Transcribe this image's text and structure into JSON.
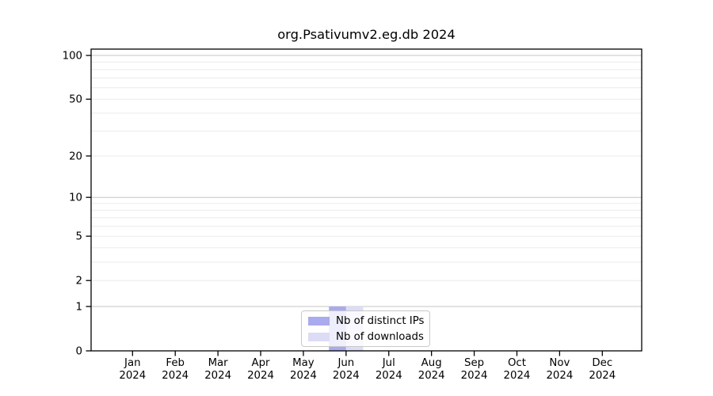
{
  "title": "org.Psativumv2.eg.db 2024",
  "colors": {
    "background": "#ffffff",
    "axis": "#000000",
    "grid_minor": "#ebebeb",
    "grid_major": "#c5c5c5",
    "legend_border": "#c9c9c9",
    "distinct_ips": "#aaaaee",
    "downloads": "#dcdcf7"
  },
  "chart_data": {
    "type": "bar",
    "title": "org.Psativumv2.eg.db 2024",
    "categories": [
      "Jan",
      "Feb",
      "Mar",
      "Apr",
      "May",
      "Jun",
      "Jul",
      "Aug",
      "Sep",
      "Oct",
      "Nov",
      "Dec"
    ],
    "year_label": "2024",
    "series": [
      {
        "name": "Nb of distinct IPs",
        "color": "#aaaaee",
        "values": [
          0,
          0,
          0,
          0,
          0,
          1,
          0,
          0,
          0,
          0,
          0,
          0
        ]
      },
      {
        "name": "Nb of downloads",
        "color": "#dcdcf7",
        "values": [
          0,
          0,
          0,
          0,
          0,
          1,
          0,
          0,
          0,
          0,
          0,
          0
        ]
      }
    ],
    "y_scale": "log1p",
    "ylim": [
      0,
      110
    ],
    "y_ticks": [
      0,
      1,
      2,
      5,
      10,
      20,
      50,
      100
    ],
    "grid_minor_values": [
      2,
      3,
      4,
      5,
      6,
      7,
      8,
      9,
      20,
      30,
      40,
      50,
      60,
      70,
      80,
      90
    ],
    "grid_major_values": [
      1,
      10,
      100
    ],
    "grid": true,
    "legend_position": "bottom-center",
    "xlabel": "",
    "ylabel": ""
  }
}
